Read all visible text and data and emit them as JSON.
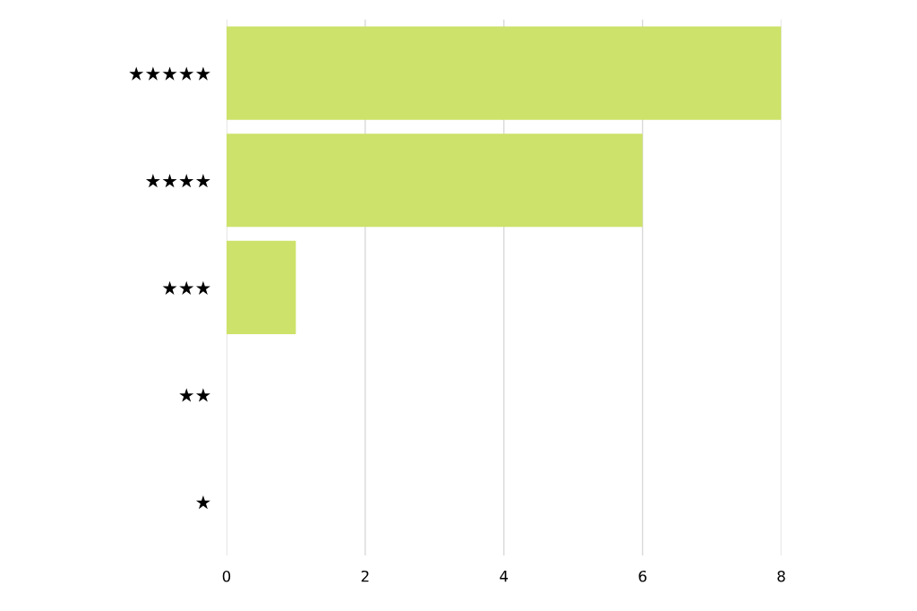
{
  "chart_data": {
    "type": "bar",
    "orientation": "horizontal",
    "categories": [
      "★★★★★",
      "★★★★",
      "★★★",
      "★★",
      "★"
    ],
    "values": [
      8,
      6,
      1,
      0,
      0
    ],
    "color": "#cce26a",
    "xlim": [
      0,
      8
    ],
    "xticks": [
      0,
      2,
      4,
      6,
      8
    ],
    "grid": "x"
  }
}
